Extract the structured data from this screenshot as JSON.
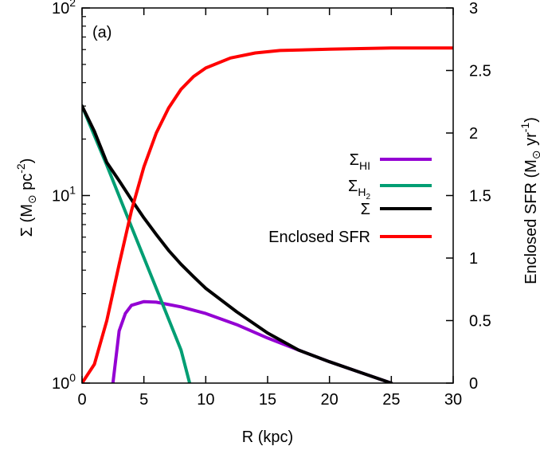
{
  "chart_data": {
    "type": "line",
    "panel_label": "(a)",
    "xlabel": "R (kpc)",
    "ylabel_left": {
      "main": "Σ (M",
      "sub": "⊙",
      "mid": " pc",
      "sup": "-2",
      "end": ")"
    },
    "ylabel_right": {
      "main": "Enclosed SFR (M",
      "sub": "⊙",
      "mid": " yr",
      "sup": "-1",
      "end": ")"
    },
    "xlim": [
      0,
      30
    ],
    "ylim_left": [
      1,
      100
    ],
    "ylim_right": [
      0,
      3
    ],
    "y_left_scale": "log",
    "x_ticks": [
      "0",
      "5",
      "10",
      "15",
      "20",
      "25",
      "30"
    ],
    "y_left_ticks": [
      {
        "value": 1,
        "base": "10",
        "exp": "0"
      },
      {
        "value": 10,
        "base": "10",
        "exp": "1"
      },
      {
        "value": 100,
        "base": "10",
        "exp": "2"
      }
    ],
    "y_right_ticks": [
      "0",
      "0.5",
      "1",
      "1.5",
      "2",
      "2.5",
      "3"
    ],
    "legend_position": "right-middle",
    "series": [
      {
        "name": "Σ_HI",
        "legend": {
          "main": "Σ",
          "sub": "HI"
        },
        "color": "#9400d3",
        "axis": "left",
        "points": [
          [
            2.5,
            1.0
          ],
          [
            3.0,
            1.9
          ],
          [
            3.5,
            2.35
          ],
          [
            4.0,
            2.6
          ],
          [
            5.0,
            2.72
          ],
          [
            6.0,
            2.7
          ],
          [
            8.0,
            2.55
          ],
          [
            10.0,
            2.35
          ],
          [
            12.5,
            2.05
          ],
          [
            15.0,
            1.74
          ],
          [
            17.5,
            1.5
          ],
          [
            20.0,
            1.3
          ],
          [
            22.5,
            1.14
          ],
          [
            25.0,
            1.0
          ]
        ]
      },
      {
        "name": "Σ_H2",
        "legend": {
          "main": "Σ",
          "sub": "H",
          "subsub": "2"
        },
        "color": "#009e73",
        "axis": "left",
        "points": [
          [
            0,
            30.0
          ],
          [
            2.0,
            14.5
          ],
          [
            4.0,
            6.8
          ],
          [
            6.0,
            3.2
          ],
          [
            8.0,
            1.5
          ],
          [
            8.7,
            1.0
          ]
        ]
      },
      {
        "name": "Σ",
        "legend": {
          "main": "Σ"
        },
        "color": "#000000",
        "axis": "left",
        "points": [
          [
            0,
            30.0
          ],
          [
            1.0,
            22.0
          ],
          [
            2.0,
            15.0
          ],
          [
            3.0,
            12.0
          ],
          [
            4.0,
            9.5
          ],
          [
            5.0,
            7.6
          ],
          [
            6.0,
            6.2
          ],
          [
            7.0,
            5.1
          ],
          [
            8.0,
            4.3
          ],
          [
            9.0,
            3.7
          ],
          [
            10.0,
            3.2
          ],
          [
            12.5,
            2.4
          ],
          [
            15.0,
            1.85
          ],
          [
            17.5,
            1.5
          ],
          [
            20.0,
            1.3
          ],
          [
            22.5,
            1.14
          ],
          [
            25.0,
            1.0
          ]
        ]
      },
      {
        "name": "Enclosed SFR",
        "legend": {
          "main": "Enclosed SFR"
        },
        "color": "#ff0000",
        "axis": "right",
        "points": [
          [
            0,
            0.0
          ],
          [
            1.0,
            0.15
          ],
          [
            2.0,
            0.5
          ],
          [
            3.0,
            0.95
          ],
          [
            4.0,
            1.38
          ],
          [
            5.0,
            1.73
          ],
          [
            6.0,
            2.0
          ],
          [
            7.0,
            2.2
          ],
          [
            8.0,
            2.35
          ],
          [
            9.0,
            2.45
          ],
          [
            10.0,
            2.52
          ],
          [
            12.0,
            2.6
          ],
          [
            14.0,
            2.64
          ],
          [
            16.0,
            2.66
          ],
          [
            20.0,
            2.67
          ],
          [
            25.0,
            2.68
          ],
          [
            30.0,
            2.68
          ]
        ]
      }
    ]
  }
}
